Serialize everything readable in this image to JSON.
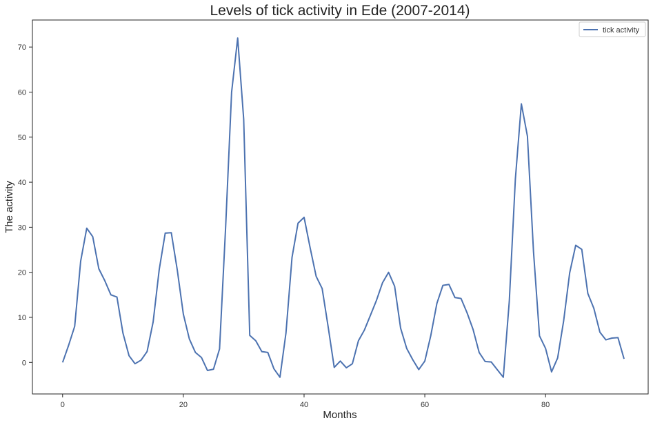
{
  "chart_data": {
    "type": "line",
    "title": "Levels of tick activity in Ede (2007-2014)",
    "xlabel": "Months",
    "ylabel": "The activity",
    "xlim": [
      -5,
      97
    ],
    "ylim": [
      -7,
      76
    ],
    "xticks": [
      0,
      20,
      40,
      60,
      80
    ],
    "yticks": [
      0,
      10,
      20,
      30,
      40,
      50,
      60,
      70
    ],
    "grid": false,
    "legend_position": "top-right",
    "series": [
      {
        "name": "tick activity",
        "color": "#4c72b0",
        "x": [
          0,
          1,
          2,
          3,
          4,
          5,
          6,
          7,
          8,
          9,
          10,
          11,
          12,
          13,
          14,
          15,
          16,
          17,
          18,
          19,
          20,
          21,
          22,
          23,
          24,
          25,
          26,
          27,
          28,
          29,
          30,
          31,
          32,
          33,
          34,
          35,
          36,
          37,
          38,
          39,
          40,
          41,
          42,
          43,
          44,
          45,
          46,
          47,
          48,
          49,
          50,
          51,
          52,
          53,
          54,
          55,
          56,
          57,
          58,
          59,
          60,
          61,
          62,
          63,
          64,
          65,
          66,
          67,
          68,
          69,
          70,
          71,
          72,
          73,
          74,
          75,
          76,
          77,
          78,
          79,
          80,
          81,
          82,
          83,
          84,
          85,
          86,
          87,
          88,
          89,
          90,
          91,
          92,
          93
        ],
        "values": [
          0,
          3.8,
          8,
          22.5,
          29.8,
          27.9,
          20.8,
          18.1,
          15,
          14.5,
          6.5,
          1.5,
          -0.3,
          0.5,
          2.4,
          9,
          20.6,
          28.7,
          28.8,
          20.5,
          10.7,
          5.2,
          2.2,
          1.1,
          -1.8,
          -1.5,
          3,
          30,
          60,
          72,
          54,
          6,
          4.8,
          2.4,
          2.2,
          -1.4,
          -3.3,
          6.5,
          23.3,
          30.9,
          32.2,
          25.5,
          19.1,
          16.4,
          7.8,
          -1.1,
          0.3,
          -1.2,
          -0.3,
          4.8,
          7.2,
          10.5,
          13.8,
          17.7,
          20,
          16.9,
          7.6,
          3.1,
          0.6,
          -1.6,
          0.3,
          6,
          13.1,
          17.1,
          17.3,
          14.4,
          14.2,
          11,
          7.3,
          2.2,
          0.2,
          0.1,
          -1.6,
          -3.3,
          13.6,
          40.7,
          57.4,
          50.2,
          24.6,
          5.9,
          3.1,
          -2.1,
          1,
          9.2,
          19.9,
          26,
          25.1,
          15.3,
          12,
          6.7,
          5,
          5.4,
          5.5,
          0.8
        ]
      }
    ]
  }
}
